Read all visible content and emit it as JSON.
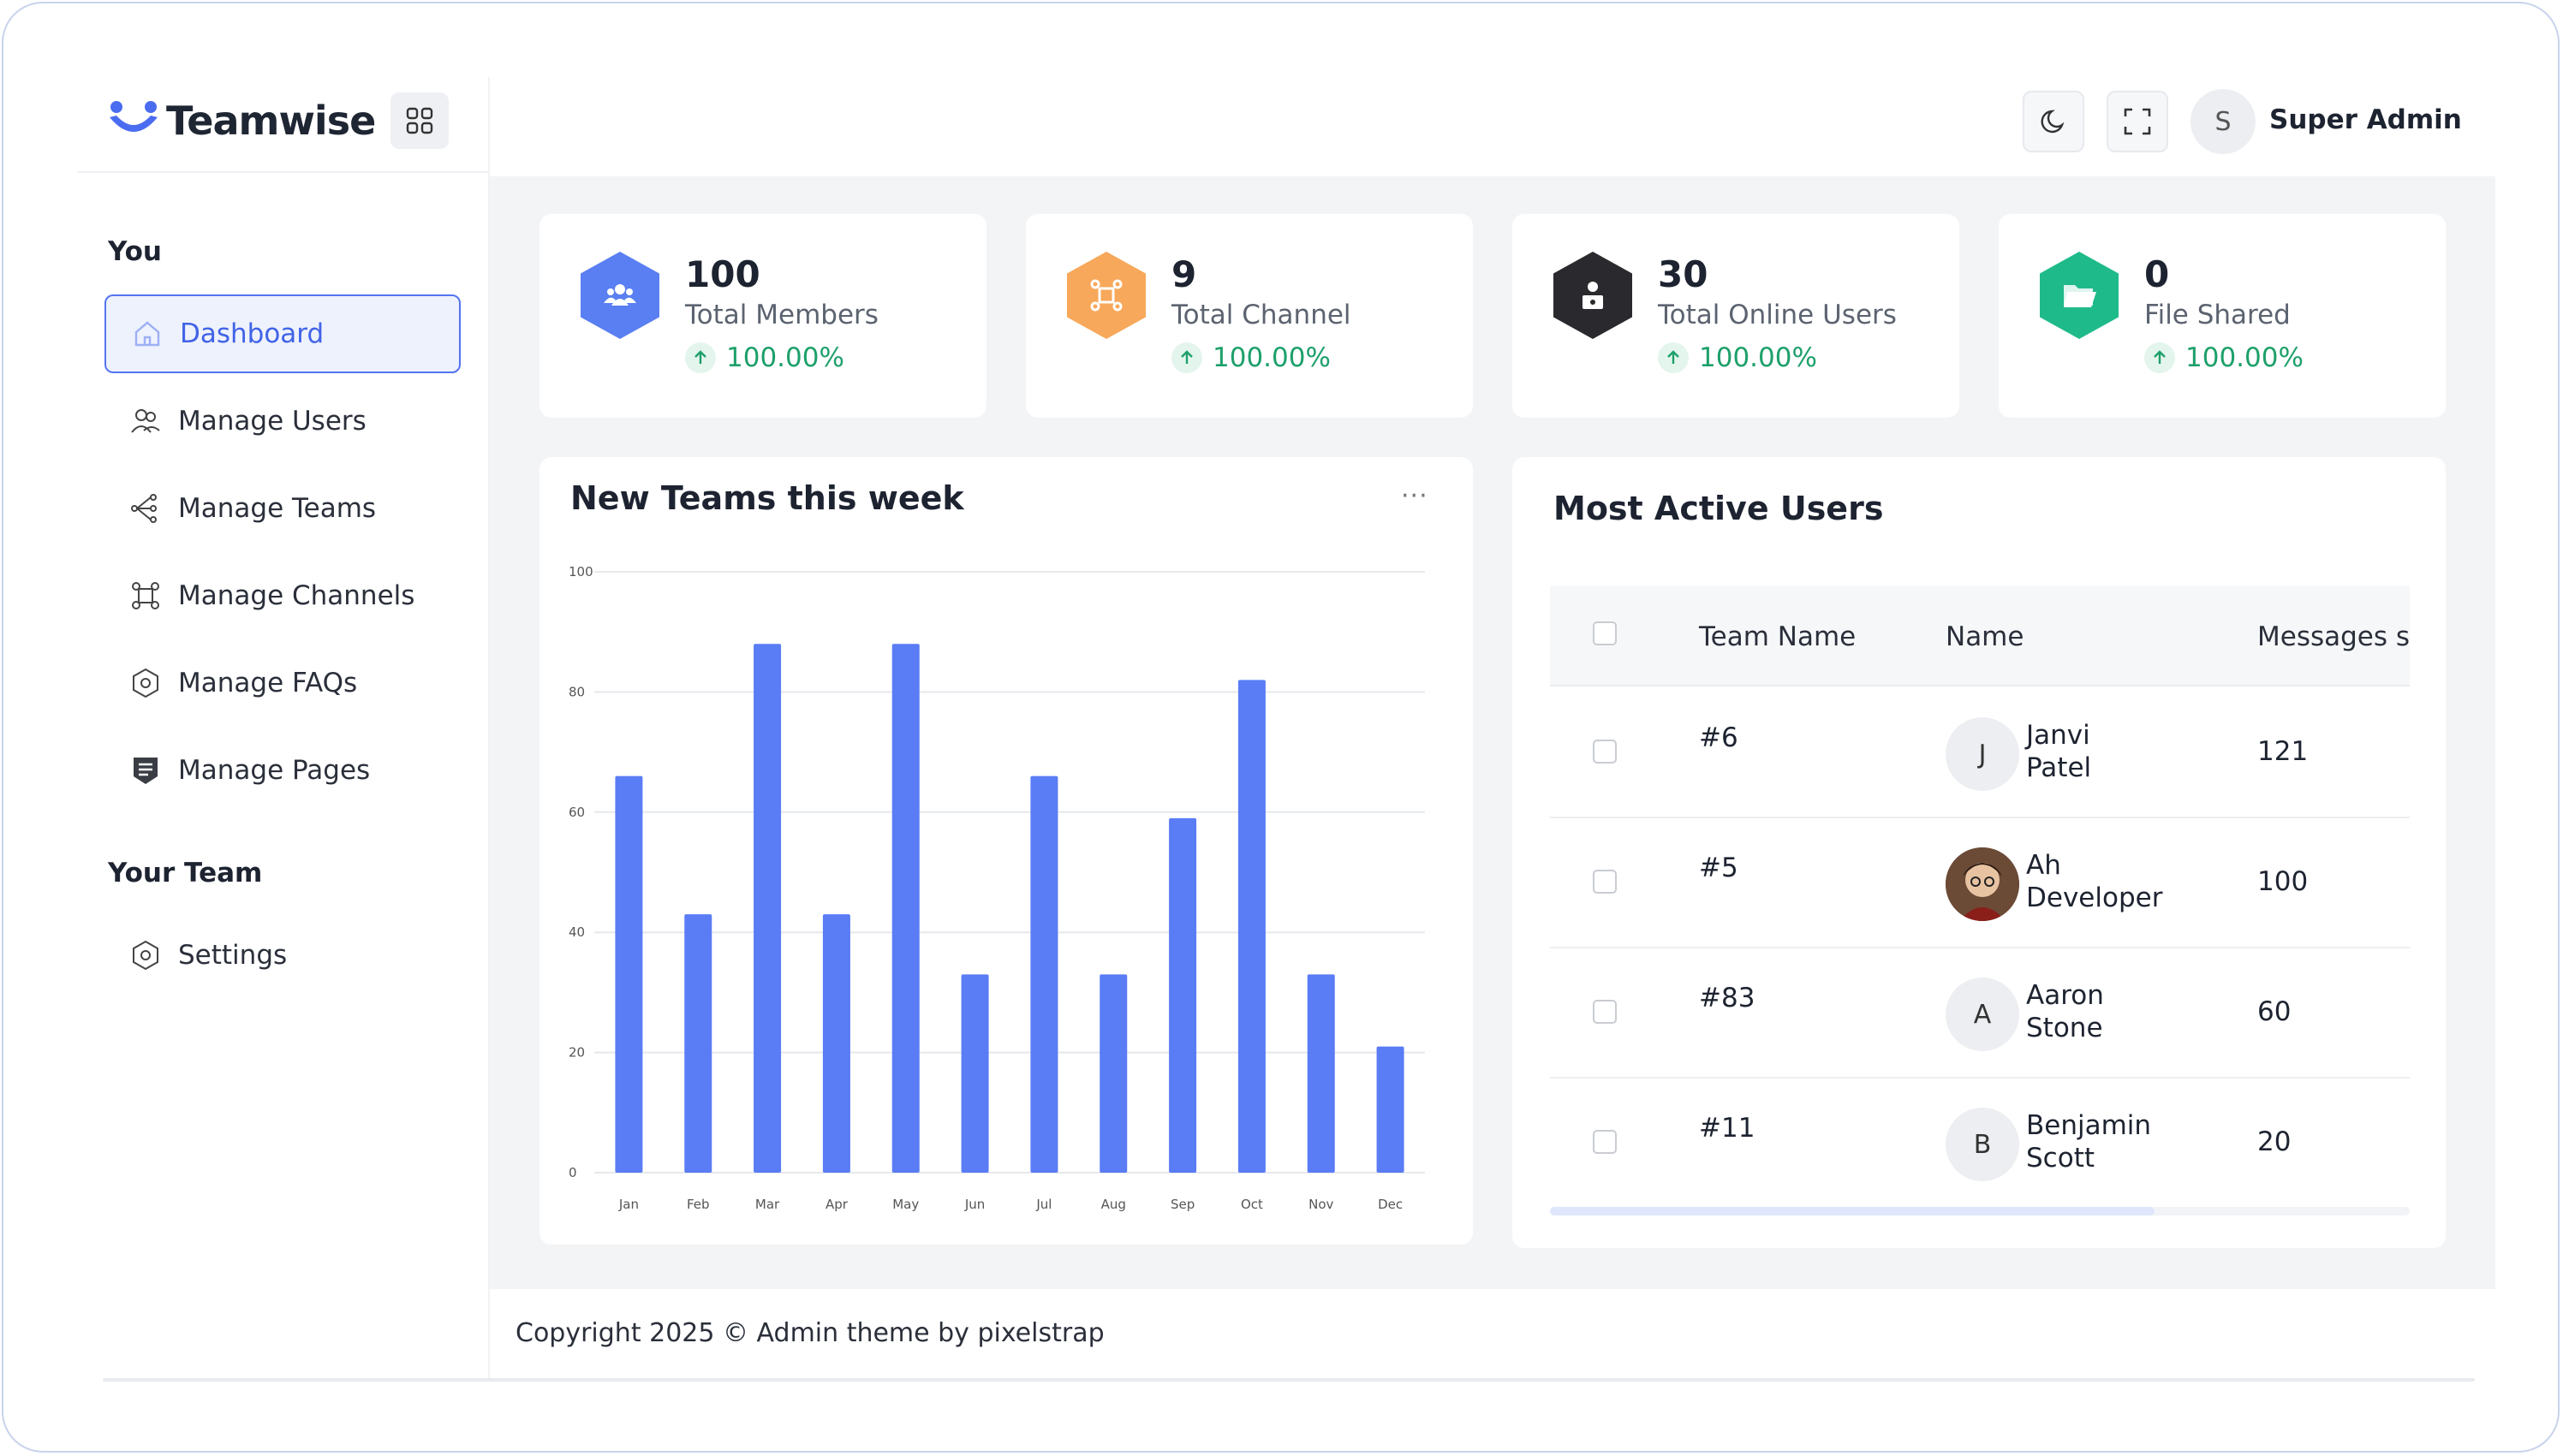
{
  "brand": {
    "name": "Teamwise"
  },
  "sidebar": {
    "sections": [
      {
        "title": "You",
        "items": [
          {
            "label": "Dashboard",
            "icon": "home-icon",
            "active": true
          },
          {
            "label": "Manage Users",
            "icon": "users-icon"
          },
          {
            "label": "Manage Teams",
            "icon": "teams-icon"
          },
          {
            "label": "Manage Channels",
            "icon": "channels-icon"
          },
          {
            "label": "Manage FAQs",
            "icon": "faq-icon"
          },
          {
            "label": "Manage Pages",
            "icon": "pages-icon"
          }
        ]
      },
      {
        "title": "Your Team",
        "items": [
          {
            "label": "Settings",
            "icon": "settings-icon"
          }
        ]
      }
    ]
  },
  "header": {
    "user_initial": "S",
    "user_name": "Super Admin"
  },
  "stats": [
    {
      "value": "100",
      "label": "Total Members",
      "change": "100.00%",
      "color": "#5a7ff2",
      "icon": "members-icon"
    },
    {
      "value": "9",
      "label": "Total Channel",
      "change": "100.00%",
      "color": "#f7a85a",
      "icon": "channel-icon"
    },
    {
      "value": "30",
      "label": "Total Online Users",
      "change": "100.00%",
      "color": "#2a2a2e",
      "icon": "online-users-icon"
    },
    {
      "value": "0",
      "label": "File Shared",
      "change": "100.00%",
      "color": "#1fba8a",
      "icon": "folder-icon"
    }
  ],
  "chart_card": {
    "title": "New Teams this week",
    "menu": "···"
  },
  "chart_data": {
    "type": "bar",
    "title": "New Teams this week",
    "categories": [
      "Jan",
      "Feb",
      "Mar",
      "Apr",
      "May",
      "Jun",
      "Jul",
      "Aug",
      "Sep",
      "Oct",
      "Nov",
      "Dec"
    ],
    "values": [
      66,
      43,
      88,
      43,
      88,
      33,
      66,
      33,
      59,
      82,
      33,
      21
    ],
    "ylim": [
      0,
      100
    ],
    "yticks": [
      "0",
      "20",
      "40",
      "60",
      "80",
      "100"
    ],
    "color": "#5a7cf5",
    "grid": true
  },
  "active_users": {
    "title": "Most Active Users",
    "columns": [
      "Team Name",
      "Name",
      "Messages s"
    ],
    "rows": [
      {
        "team": "#6",
        "initial": "J",
        "first": "Janvi",
        "last": "Patel",
        "messages": "121",
        "photo": false
      },
      {
        "team": "#5",
        "initial": "",
        "first": "Ah",
        "last": "Developer",
        "messages": "100",
        "photo": true
      },
      {
        "team": "#83",
        "initial": "A",
        "first": "Aaron",
        "last": "Stone",
        "messages": "60",
        "photo": false
      },
      {
        "team": "#11",
        "initial": "B",
        "first": "Benjamin",
        "last": "Scott",
        "messages": "20",
        "photo": false
      }
    ]
  },
  "footer": {
    "text": "Copyright 2025 © Admin theme by pixelstrap"
  }
}
